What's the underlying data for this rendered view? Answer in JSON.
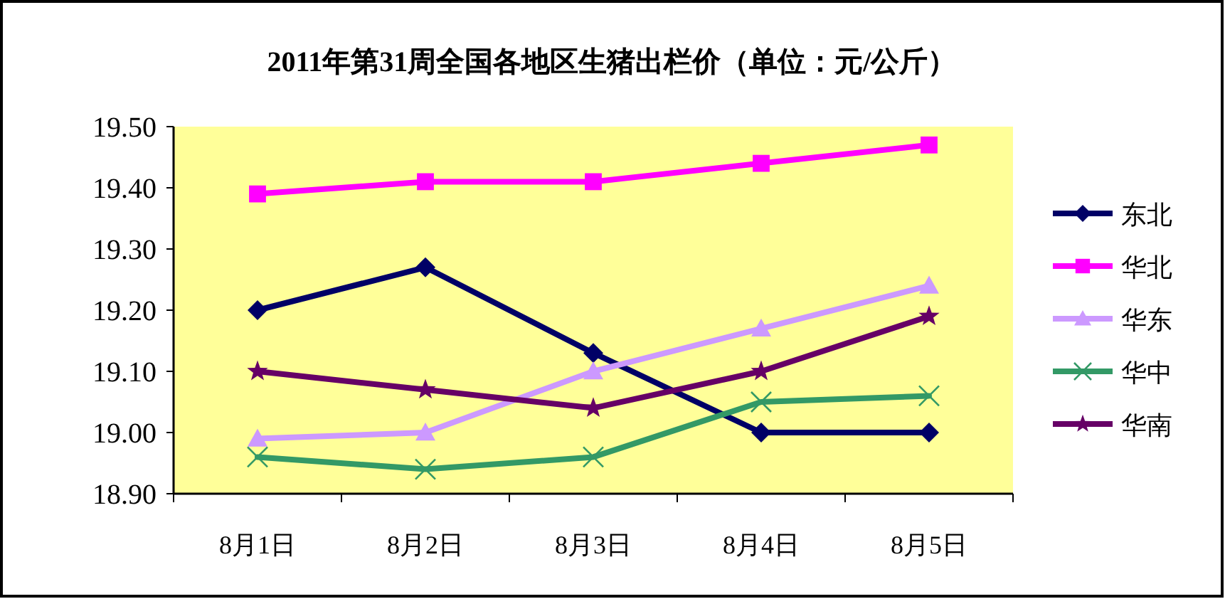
{
  "chart_data": {
    "type": "line",
    "title": "2011年第31周全国各地区生猪出栏价（单位：元/公斤）",
    "categories": [
      "8月1日",
      "8月2日",
      "8月3日",
      "8月4日",
      "8月5日"
    ],
    "series": [
      {
        "name": "东北",
        "color": "#000066",
        "marker": "diamond",
        "values": [
          19.2,
          19.27,
          19.13,
          19.0,
          19.0
        ]
      },
      {
        "name": "华北",
        "color": "#ff00ff",
        "marker": "square",
        "values": [
          19.39,
          19.41,
          19.41,
          19.44,
          19.47
        ]
      },
      {
        "name": "华东",
        "color": "#cc99ff",
        "marker": "triangle",
        "values": [
          18.99,
          19.0,
          19.1,
          19.17,
          19.24
        ]
      },
      {
        "name": "华中",
        "color": "#339966",
        "marker": "cross",
        "values": [
          18.96,
          18.94,
          18.96,
          19.05,
          19.06
        ]
      },
      {
        "name": "华南",
        "color": "#660066",
        "marker": "star",
        "values": [
          19.1,
          19.07,
          19.04,
          19.1,
          19.19
        ]
      }
    ],
    "ylim": [
      18.9,
      19.5
    ],
    "yticks": [
      {
        "value": 18.9,
        "label": "18.90"
      },
      {
        "value": 19.0,
        "label": "19.00"
      },
      {
        "value": 19.1,
        "label": "19.10"
      },
      {
        "value": 19.2,
        "label": "19.20"
      },
      {
        "value": 19.3,
        "label": "19.30"
      },
      {
        "value": 19.4,
        "label": "19.40"
      },
      {
        "value": 19.5,
        "label": "19.50"
      }
    ],
    "grid": false,
    "legend": "right",
    "line_style": "solid"
  }
}
